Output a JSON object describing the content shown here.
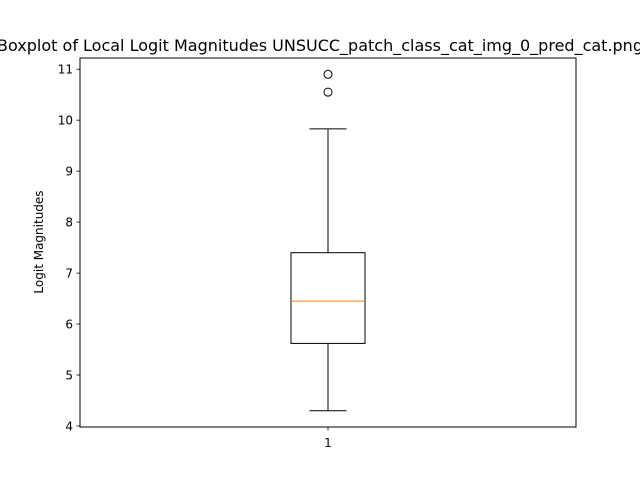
{
  "chart_data": {
    "type": "boxplot",
    "title": "Boxplot of Local Logit Magnitudes UNSUCC_patch_class_cat_img_0_pred_cat.png",
    "xlabel": "",
    "ylabel": "Logit Magnitudes",
    "categories": [
      "1"
    ],
    "ylim": [
      3.98,
      11.22
    ],
    "yticks": [
      4,
      5,
      6,
      7,
      8,
      9,
      10,
      11
    ],
    "grid": false,
    "boxes": [
      {
        "category": "1",
        "whisker_low": 4.3,
        "q1": 5.62,
        "median": 6.45,
        "q3": 7.4,
        "whisker_high": 9.83,
        "outliers": [
          10.55,
          10.9
        ]
      }
    ],
    "colors": {
      "box": "#000000",
      "median": "#ff7f0e",
      "whisker": "#000000",
      "outlier": "#000000"
    }
  }
}
